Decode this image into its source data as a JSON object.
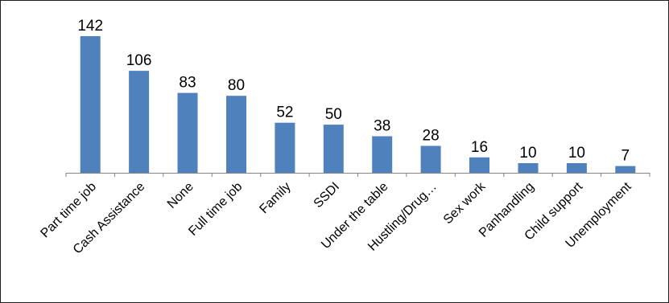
{
  "chart_data": {
    "type": "bar",
    "title": "",
    "xlabel": "",
    "ylabel": "",
    "categories": [
      "Part time job",
      "Cash Assistance",
      "None",
      "Full time job",
      "Family",
      "SSDI",
      "Under the table",
      "Hustling/Drug…",
      "Sex work",
      "Panhandling",
      "Child support",
      "Unemployment"
    ],
    "values": [
      142,
      106,
      83,
      80,
      52,
      50,
      38,
      28,
      16,
      10,
      10,
      7
    ],
    "ylim": [
      0,
      142
    ],
    "grid": false,
    "legend": "none",
    "bar_color": "#4f81bd",
    "axis_color": "#868686"
  }
}
